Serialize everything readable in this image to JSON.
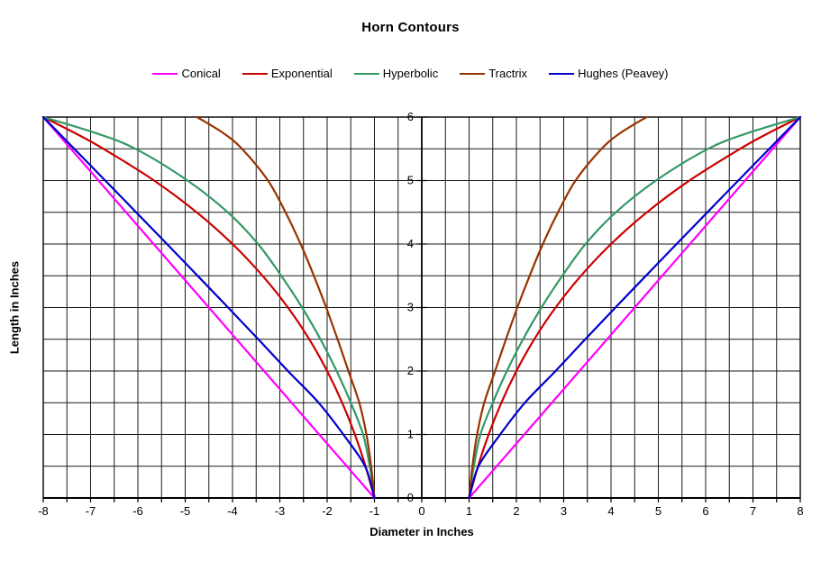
{
  "chart_data": {
    "type": "line",
    "title": "Horn Contours",
    "xlabel": "Diameter in Inches",
    "ylabel": "Length in Inches",
    "xlim": [
      -8,
      8
    ],
    "ylim": [
      0,
      6
    ],
    "x_ticks": [
      -8,
      -7,
      -6,
      -5,
      -4,
      -3,
      -2,
      -1,
      0,
      1,
      2,
      3,
      4,
      5,
      6,
      7,
      8
    ],
    "y_ticks": [
      0,
      1,
      2,
      3,
      4,
      5,
      6
    ],
    "minor_grid_step_x": 0.5,
    "minor_grid_step_y": 0.5,
    "grid": true,
    "legend_position": "top",
    "background_color": "#FFFFFF",
    "grid_color": "#1a1a1a",
    "axis_color": "#000000",
    "mirrored_about_x0": true,
    "points_format": "[diameter_inches, length_inches] for positive half; curves are mirrored to negative diameters",
    "series": [
      {
        "name": "Conical",
        "color": "#FF00FF",
        "points": [
          [
            1,
            0
          ],
          [
            2.167,
            1
          ],
          [
            3.333,
            2
          ],
          [
            4.5,
            3
          ],
          [
            5.667,
            4
          ],
          [
            6.833,
            5
          ],
          [
            8,
            6
          ]
        ]
      },
      {
        "name": "Exponential",
        "color": "#CC0000",
        "points": [
          [
            1,
            0
          ],
          [
            1.189,
            0.5
          ],
          [
            1.414,
            1
          ],
          [
            1.682,
            1.5
          ],
          [
            2.0,
            2
          ],
          [
            2.378,
            2.5
          ],
          [
            2.828,
            3
          ],
          [
            3.364,
            3.5
          ],
          [
            4.0,
            4
          ],
          [
            4.757,
            4.5
          ],
          [
            5.657,
            5
          ],
          [
            6.727,
            5.5
          ],
          [
            7.336,
            5.75
          ],
          [
            8,
            6
          ]
        ]
      },
      {
        "name": "Hyperbolic",
        "color": "#339966",
        "points": [
          [
            1,
            0
          ],
          [
            1.1,
            0.5
          ],
          [
            1.24,
            1
          ],
          [
            1.5,
            1.5
          ],
          [
            1.8,
            2
          ],
          [
            2.14,
            2.5
          ],
          [
            2.53,
            3
          ],
          [
            2.97,
            3.5
          ],
          [
            3.46,
            4
          ],
          [
            4.1,
            4.5
          ],
          [
            4.95,
            5
          ],
          [
            6.05,
            5.5
          ],
          [
            6.9,
            5.75
          ],
          [
            8,
            6
          ]
        ]
      },
      {
        "name": "Tractrix",
        "color": "#993300",
        "points": [
          [
            1,
            0
          ],
          [
            1.07,
            0.5
          ],
          [
            1.17,
            1
          ],
          [
            1.32,
            1.5
          ],
          [
            1.55,
            2
          ],
          [
            1.78,
            2.5
          ],
          [
            2.02,
            3
          ],
          [
            2.28,
            3.5
          ],
          [
            2.56,
            4
          ],
          [
            2.88,
            4.5
          ],
          [
            3.25,
            5
          ],
          [
            3.8,
            5.5
          ],
          [
            4.2,
            5.75
          ],
          [
            4.75,
            6
          ]
        ]
      },
      {
        "name": "Hughes (Peavey)",
        "color": "#0000CC",
        "points": [
          [
            1,
            0
          ],
          [
            1.199,
            0.5
          ],
          [
            1.658,
            1
          ],
          [
            2.179,
            1.5
          ],
          [
            2.828,
            2
          ],
          [
            3.455,
            2.5
          ],
          [
            4.093,
            3
          ],
          [
            4.737,
            3.5
          ],
          [
            5.385,
            4
          ],
          [
            6.036,
            4.5
          ],
          [
            6.689,
            5
          ],
          [
            7.344,
            5.5
          ],
          [
            8,
            6
          ]
        ]
      }
    ]
  }
}
